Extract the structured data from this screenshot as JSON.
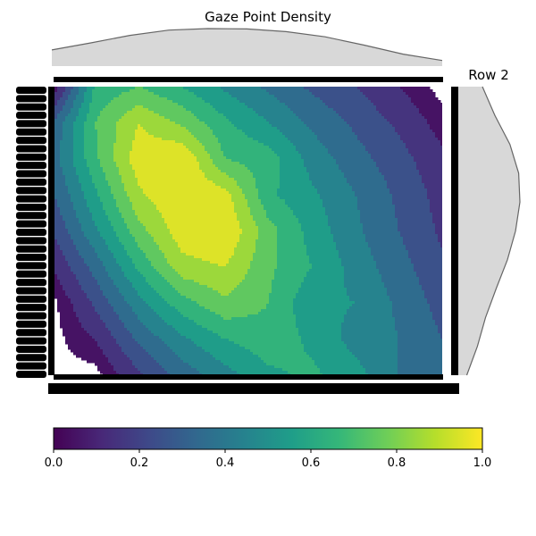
{
  "chart_data": {
    "type": "heatmap",
    "subtype": "filled-contour density with marginal distributions",
    "title": "Gaze Point Density",
    "side_label": "Row 2",
    "xlabel": "",
    "ylabel": "",
    "tick_labels_legible": false,
    "x_ticks": [
      "",
      "",
      "",
      "",
      "",
      "",
      "",
      "",
      "",
      "",
      "",
      "",
      "",
      "",
      "",
      "",
      "",
      "",
      "",
      "",
      "",
      "",
      "",
      "",
      "",
      "",
      "",
      "",
      "",
      "",
      "",
      "",
      "",
      "",
      "",
      "",
      "",
      "",
      "",
      "",
      "",
      "",
      "",
      "",
      "",
      "",
      "",
      "",
      "",
      "",
      "",
      "",
      "",
      "",
      "",
      "",
      "",
      "",
      "",
      "",
      "",
      "",
      "",
      "",
      "",
      "",
      "",
      "",
      "",
      "",
      "",
      "",
      "",
      "",
      "",
      "",
      "",
      "",
      "",
      ""
    ],
    "y_ticks": [
      "",
      "",
      "",
      "",
      "",
      "",
      "",
      "",
      "",
      "",
      "",
      "",
      "",
      "",
      "",
      "",
      "",
      "",
      "",
      "",
      "",
      "",
      "",
      "",
      "",
      "",
      "",
      "",
      "",
      "",
      "",
      "",
      "",
      "",
      ""
    ],
    "grid": [
      [
        0.0,
        0.62,
        0.7,
        0.6,
        0.48,
        0.38,
        0.28,
        0.2,
        0.1,
        0.0
      ],
      [
        0.3,
        0.7,
        0.9,
        0.78,
        0.62,
        0.5,
        0.38,
        0.28,
        0.18,
        0.06
      ],
      [
        0.34,
        0.68,
        0.96,
        1.0,
        0.7,
        0.65,
        0.46,
        0.34,
        0.24,
        0.12
      ],
      [
        0.28,
        0.58,
        0.88,
        1.0,
        0.94,
        0.62,
        0.52,
        0.4,
        0.28,
        0.16
      ],
      [
        0.2,
        0.48,
        0.76,
        0.96,
        1.0,
        0.74,
        0.56,
        0.42,
        0.3,
        0.18
      ],
      [
        0.1,
        0.34,
        0.62,
        0.86,
        0.9,
        0.72,
        0.6,
        0.46,
        0.34,
        0.22
      ],
      [
        0.0,
        0.22,
        0.46,
        0.66,
        0.78,
        0.7,
        0.52,
        0.5,
        0.38,
        0.26
      ],
      [
        0.0,
        0.1,
        0.32,
        0.48,
        0.6,
        0.66,
        0.58,
        0.46,
        0.4,
        0.3
      ],
      [
        0.0,
        0.0,
        0.18,
        0.34,
        0.46,
        0.58,
        0.62,
        0.54,
        0.4,
        0.32
      ]
    ],
    "levels": [
      0.0,
      0.1,
      0.2,
      0.3,
      0.4,
      0.5,
      0.6,
      0.7,
      0.8,
      0.9,
      1.0
    ],
    "colorbar": {
      "colormap": "viridis",
      "orientation": "horizontal",
      "range": [
        0.0,
        1.0
      ],
      "ticks": [
        "0.0",
        "0.2",
        "0.4",
        "0.6",
        "0.8",
        "1.0"
      ]
    },
    "marginal_top": {
      "fill": "#d8d8d8",
      "stroke": "#666666",
      "values": [
        0.43,
        0.62,
        0.82,
        0.96,
        1.0,
        0.99,
        0.92,
        0.78,
        0.56,
        0.32,
        0.15
      ]
    },
    "marginal_right": {
      "fill": "#d8d8d8",
      "stroke": "#666666",
      "values": [
        0.4,
        0.6,
        0.84,
        0.98,
        1.0,
        0.93,
        0.8,
        0.62,
        0.45,
        0.32,
        0.15
      ]
    }
  }
}
